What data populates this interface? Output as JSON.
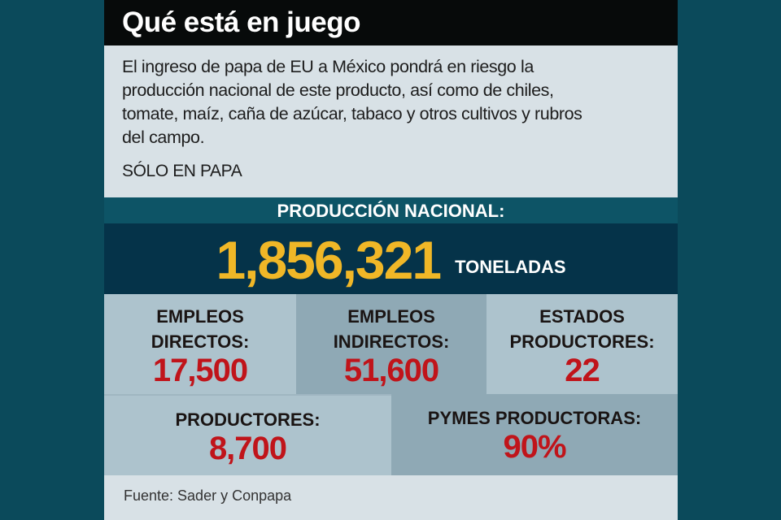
{
  "title": "Qué está en juego",
  "intro_lines": [
    "El ingreso de papa de EU a México pondrá en riesgo la",
    "producción nacional de este producto, así como de chiles,",
    "tomate, maíz, caña de azúcar, tabaco y otros cultivos y rubros",
    "del campo."
  ],
  "subtitle": "SÓLO EN PAPA",
  "production": {
    "header": "PRODUCCIÓN NACIONAL:",
    "value": "1,856,321",
    "unit": "TONELADAS"
  },
  "stats": [
    {
      "label1": "EMPLEOS",
      "label2": "DIRECTOS:",
      "value": "17,500"
    },
    {
      "label1": "EMPLEOS",
      "label2": "INDIRECTOS:",
      "value": "51,600"
    },
    {
      "label1": "ESTADOS",
      "label2": "PRODUCTORES:",
      "value": "22"
    },
    {
      "label1": "PRODUCTORES:",
      "value": "8,700"
    },
    {
      "label1": "PYMES PRODUCTORAS:",
      "value": "90%"
    }
  ],
  "source": "Fuente: Sader y Conpapa",
  "colors": {
    "background": "#0b4a5b",
    "accent_yellow": "#f0b727",
    "value_red": "#c0141a"
  }
}
